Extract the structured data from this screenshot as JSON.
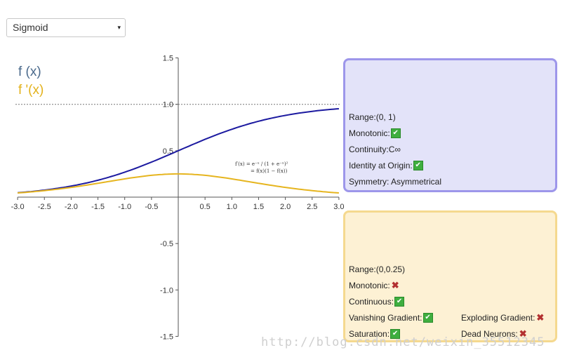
{
  "dropdown": {
    "selected": "Sigmoid",
    "caret": "▾"
  },
  "legend": {
    "f_label": "f (x)",
    "fprime_label": "f '(x)"
  },
  "formula": {
    "line1": "f′(x) = e⁻ˣ / (1 + e⁻ˣ)²",
    "line2": "= f(x)(1 − f(x))"
  },
  "blue_panel": {
    "range": "Range:(0, 1)",
    "monotonic": "Monotonic:",
    "continuity": "Continuity:C∞",
    "identity": "Identity at Origin:",
    "symmetry": "Symmetry: Asymmetrical"
  },
  "yellow_panel": {
    "range": "Range:(0,0.25)",
    "monotonic": "Monotonic:",
    "continuous": "Continuous:",
    "vanishing": "Vanishing Gradient:",
    "exploding": "Exploding Gradient:",
    "saturation": "Saturation:",
    "dead": "Dead Neurons:"
  },
  "icons": {
    "check": "✔",
    "cross": "✖"
  },
  "watermark": "http://blog.csdn.net/weixin_35512345",
  "colors": {
    "f_curve": "#1c1aa0",
    "fprime_curve": "#e6b51f",
    "legend_f": "#4b6a8c",
    "legend_fprime": "#e3b21c"
  },
  "chart_data": {
    "type": "line",
    "x_ticks": [
      "-3.0",
      "-2.5",
      "-2.0",
      "-1.5",
      "-1.0",
      "-0.5",
      "0.5",
      "1.0",
      "1.5",
      "2.0",
      "2.5",
      "3.0"
    ],
    "y_ticks": [
      "1.5",
      "1.0",
      "0.5",
      "-0.5",
      "-1.0",
      "-1.5"
    ],
    "xlim": [
      -3,
      3
    ],
    "ylim": [
      -1.5,
      1.5
    ],
    "reference_line": 1.0,
    "series": [
      {
        "name": "f (x)",
        "function": "sigmoid",
        "color": "#1c1aa0"
      },
      {
        "name": "f '(x)",
        "function": "sigmoid_derivative",
        "color": "#e6b51f"
      }
    ]
  }
}
